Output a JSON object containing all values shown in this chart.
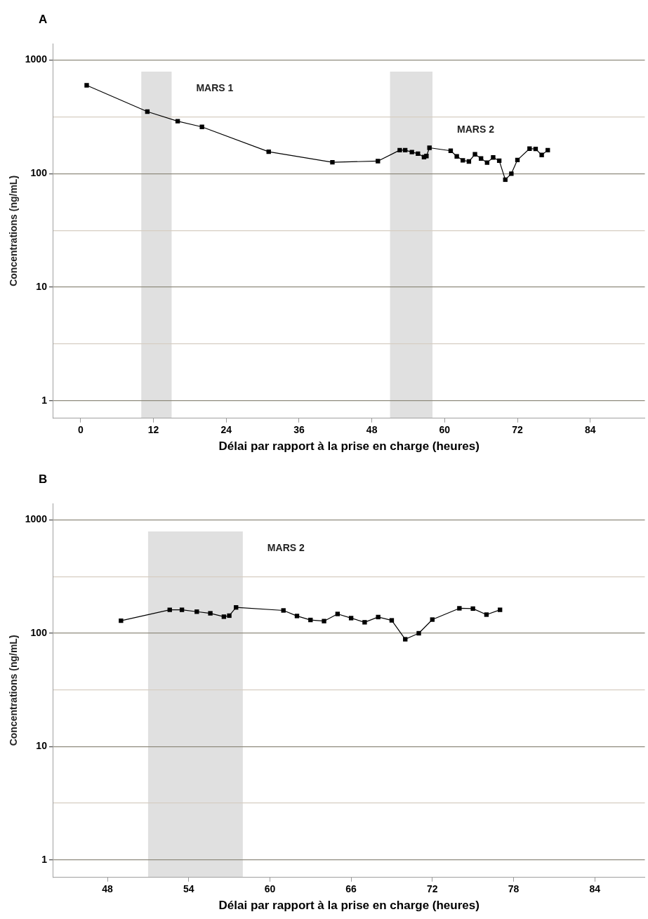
{
  "chart_data": [
    {
      "type": "line",
      "title": "A",
      "xlabel": "Délai par rapport à la prise en charge (heures)",
      "ylabel": "Concentrations (ng/mL)",
      "x": [
        1,
        11,
        16,
        20,
        31,
        41.5,
        49,
        52.6,
        53.5,
        54.6,
        55.6,
        56.6,
        57,
        57.5,
        61,
        62,
        63,
        64,
        65,
        66,
        67,
        68,
        69,
        70,
        71,
        72,
        74,
        75,
        76,
        77
      ],
      "values": [
        600,
        352,
        290,
        258,
        156,
        126,
        129,
        161,
        161,
        155,
        150,
        140,
        143,
        169,
        159,
        142,
        131,
        128,
        148,
        136,
        125,
        139,
        130,
        88.5,
        100,
        132,
        166,
        165,
        146,
        161
      ],
      "color": "#000000",
      "marker": "square",
      "line_style": "solid",
      "log": "y",
      "grid": "y",
      "legend": false,
      "xlim": [
        -4.5,
        93
      ],
      "xticks": [
        0,
        12,
        24,
        36,
        48,
        60,
        72,
        84
      ],
      "ylim": [
        0.72,
        1400
      ],
      "yticks": [
        1,
        {
          "value": 3.16,
          "label": null
        },
        10,
        {
          "value": 31.6,
          "label": null
        },
        100,
        {
          "value": 316,
          "label": null
        },
        1000
      ],
      "bands": [
        {
          "axis": "x",
          "from": 10,
          "to": 15,
          "color": "#e0e0e0",
          "label": "MARS 1"
        },
        {
          "axis": "x",
          "from": 51,
          "to": 58,
          "color": "#e0e0e0",
          "label": "MARS 2"
        }
      ]
    },
    {
      "type": "line",
      "title": "B",
      "xlabel": "Délai par rapport à la prise en charge (heures)",
      "ylabel": "Concentrations (ng/mL)",
      "x": [
        49,
        52.6,
        53.5,
        54.6,
        55.6,
        56.6,
        57,
        57.5,
        61,
        62,
        63,
        64,
        65,
        66,
        67,
        68,
        69,
        70,
        71,
        72,
        74,
        75,
        76,
        77
      ],
      "values": [
        129,
        161,
        161,
        155,
        150,
        140,
        143,
        169,
        159,
        142,
        131,
        128,
        148,
        136,
        125,
        139,
        130,
        88.5,
        100,
        132,
        166,
        165,
        146,
        161
      ],
      "color": "#000000",
      "marker": "square",
      "line_style": "solid",
      "log": "y",
      "grid": "y",
      "legend": false,
      "xlim": [
        44,
        87.7
      ],
      "xticks": [
        48,
        54,
        60,
        66,
        72,
        78,
        84
      ],
      "ylim": [
        0.72,
        1400
      ],
      "yticks": [
        1,
        {
          "value": 3.16,
          "label": null
        },
        10,
        {
          "value": 31.6,
          "label": null
        },
        100,
        {
          "value": 316,
          "label": null
        },
        1000
      ],
      "bands": [
        {
          "axis": "x",
          "from": 51,
          "to": 58,
          "color": "#e0e0e0",
          "label": "MARS 2"
        }
      ]
    }
  ]
}
